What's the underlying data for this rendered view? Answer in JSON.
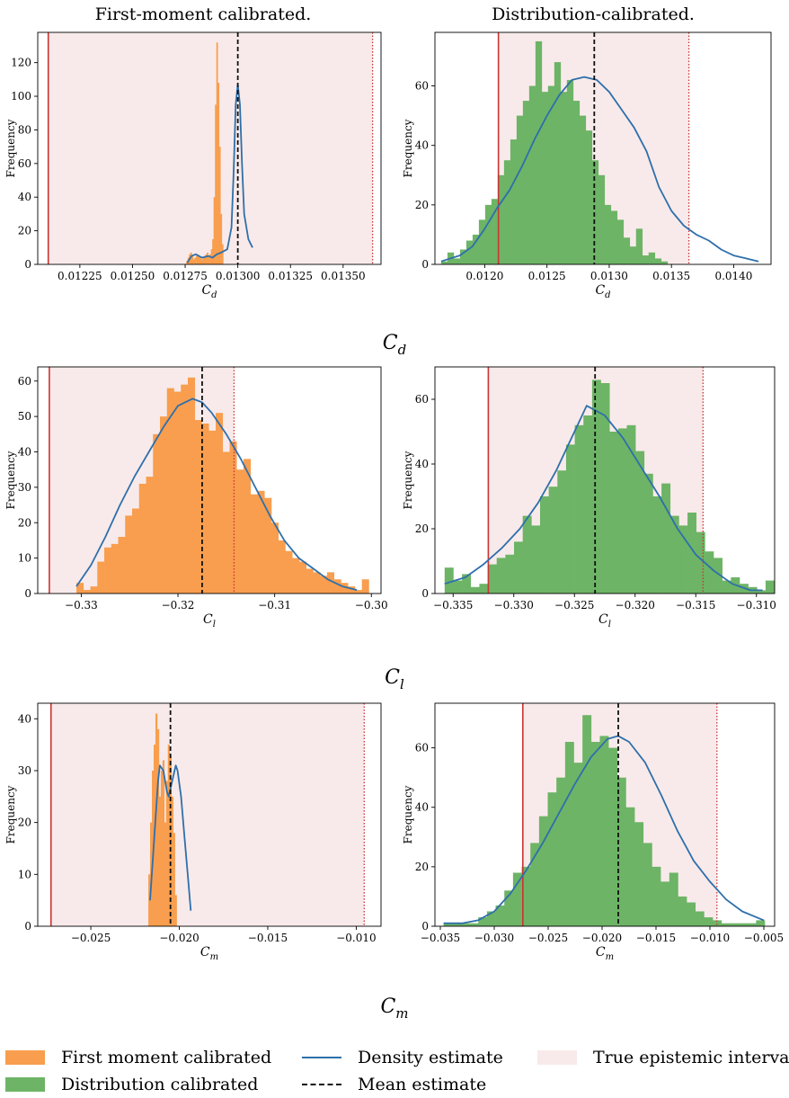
{
  "columns": {
    "left_title": "First-moment calibrated.",
    "right_title": "Distribution-calibrated."
  },
  "colors": {
    "first": "#f89e4e",
    "dist": "#6db466",
    "kde": "#2e6fab",
    "mean": "#111111",
    "interval_fill": "#f8eaea",
    "true_line": "#cc3333",
    "true_dotted": "#cc3333"
  },
  "row_labels": [
    {
      "label": "C",
      "sub": "d"
    },
    {
      "label": "C",
      "sub": "l"
    },
    {
      "label": "C",
      "sub": "m"
    }
  ],
  "legend": {
    "first_label": "First moment calibrated",
    "dist_label": "Distribution calibrated",
    "kde_label": "Density estimate",
    "mean_label": "Mean estimate",
    "interval_label": "True epistemic interval"
  },
  "chart_data": [
    {
      "type": "bar",
      "panel": "Cd-first",
      "series": "first",
      "xlabel": "C_d",
      "ylabel": "Frequency",
      "xlim": [
        0.01205,
        0.01368
      ],
      "ylim": [
        0,
        138
      ],
      "xticks": [
        0.01225,
        0.0125,
        0.01275,
        0.013,
        0.01325,
        0.0135
      ],
      "xticklabels": [
        "0.01225",
        "0.01250",
        "0.01275",
        "0.01300",
        "0.01325",
        "0.01350"
      ],
      "yticks": [
        0,
        20,
        40,
        60,
        80,
        100,
        120
      ],
      "interval": [
        0.0121,
        0.01364
      ],
      "mean": 0.013,
      "hist": {
        "start": 0.012755,
        "width": 6.5e-06,
        "values": [
          2,
          4,
          6,
          7,
          5,
          3,
          4,
          5,
          6,
          5,
          4,
          3,
          4,
          5,
          6,
          7,
          5,
          6,
          9,
          15,
          40,
          95,
          132,
          108,
          70,
          30,
          12
        ]
      },
      "kde": {
        "x": [
          0.01276,
          0.01278,
          0.0128,
          0.01283,
          0.01286,
          0.01288,
          0.0129,
          0.01292,
          0.01295,
          0.01297,
          0.01298,
          0.01299,
          0.013,
          0.01301,
          0.01302,
          0.01303,
          0.01305,
          0.01307
        ],
        "y": [
          1,
          5,
          6,
          4,
          5,
          4,
          6,
          7,
          9,
          22,
          55,
          95,
          107,
          95,
          60,
          30,
          15,
          10
        ]
      }
    },
    {
      "type": "bar",
      "panel": "Cd-dist",
      "series": "dist",
      "xlabel": "C_d",
      "ylabel": "Frequency",
      "xlim": [
        0.0116,
        0.0143
      ],
      "ylim": [
        0,
        78
      ],
      "xticks": [
        0.012,
        0.0125,
        0.013,
        0.0135,
        0.014
      ],
      "xticklabels": [
        "0.0120",
        "0.0125",
        "0.0130",
        "0.0135",
        "0.0140"
      ],
      "yticks": [
        0,
        20,
        40,
        60
      ],
      "interval": [
        0.01211,
        0.01364
      ],
      "mean": 0.01288,
      "hist": {
        "start": 0.01165,
        "width": 5.05e-05,
        "values": [
          1,
          4,
          2,
          5,
          8,
          10,
          15,
          20,
          22,
          30,
          35,
          42,
          50,
          55,
          60,
          75,
          58,
          60,
          68,
          58,
          62,
          55,
          50,
          45,
          35,
          30,
          20,
          18,
          15,
          9,
          6,
          12,
          3,
          4,
          2,
          1
        ]
      },
      "kde": {
        "x": [
          0.01165,
          0.0118,
          0.0119,
          0.012,
          0.0121,
          0.0122,
          0.0123,
          0.0124,
          0.0125,
          0.0126,
          0.0127,
          0.0128,
          0.0129,
          0.013,
          0.0131,
          0.0132,
          0.0133,
          0.0134,
          0.0135,
          0.0136,
          0.0137,
          0.0138,
          0.0139,
          0.014,
          0.0141,
          0.0142
        ],
        "y": [
          1,
          3,
          6,
          12,
          19,
          25,
          33,
          42,
          50,
          57,
          62,
          63,
          62,
          58,
          52,
          46,
          38,
          26,
          18,
          13,
          10,
          8,
          5,
          3,
          2,
          1
        ]
      }
    },
    {
      "type": "bar",
      "panel": "Cl-first",
      "series": "first",
      "xlabel": "C_l",
      "ylabel": "Frequency",
      "xlim": [
        -0.3345,
        -0.299
      ],
      "ylim": [
        0,
        64
      ],
      "xticks": [
        -0.33,
        -0.32,
        -0.31,
        -0.3
      ],
      "xticklabels": [
        "−0.33",
        "−0.32",
        "−0.31",
        "−0.30"
      ],
      "yticks": [
        0,
        10,
        20,
        30,
        40,
        50,
        60
      ],
      "interval": [
        -0.3333,
        -0.3142
      ],
      "mean": -0.3175,
      "hist": {
        "start": -0.3305,
        "width": 0.00072,
        "values": [
          3,
          1,
          2,
          9,
          13,
          14,
          16,
          22,
          24,
          31,
          33,
          45,
          50,
          58,
          57,
          59,
          61,
          49,
          48,
          46,
          51,
          40,
          43,
          35,
          38,
          28,
          29,
          27,
          20,
          15,
          12,
          10,
          9,
          7,
          6,
          5,
          6,
          4,
          3,
          2,
          1,
          4
        ]
      },
      "kde": {
        "x": [
          -0.3305,
          -0.329,
          -0.3275,
          -0.326,
          -0.3245,
          -0.323,
          -0.3215,
          -0.32,
          -0.3185,
          -0.3175,
          -0.3165,
          -0.315,
          -0.3135,
          -0.312,
          -0.3105,
          -0.309,
          -0.3075,
          -0.306,
          -0.3045,
          -0.303,
          -0.3015
        ],
        "y": [
          2,
          8,
          16,
          25,
          33,
          40,
          47,
          53,
          55,
          54,
          51,
          45,
          38,
          30,
          22,
          15,
          10,
          7,
          4,
          2,
          1
        ]
      }
    },
    {
      "type": "bar",
      "panel": "Cl-dist",
      "series": "dist",
      "xlabel": "C_l",
      "ylabel": "Frequency",
      "xlim": [
        -0.3365,
        -0.3085
      ],
      "ylim": [
        0,
        70
      ],
      "xticks": [
        -0.335,
        -0.33,
        -0.325,
        -0.32,
        -0.315,
        -0.31
      ],
      "xticklabels": [
        "−0.335",
        "−0.330",
        "−0.325",
        "−0.320",
        "−0.315",
        "−0.310"
      ],
      "yticks": [
        0,
        20,
        40,
        60
      ],
      "interval": [
        -0.3321,
        -0.3144
      ],
      "mean": -0.3233,
      "hist": {
        "start": -0.3357,
        "width": 0.000715,
        "values": [
          8,
          4,
          6,
          2,
          3,
          9,
          11,
          12,
          16,
          24,
          21,
          30,
          33,
          38,
          46,
          52,
          55,
          66,
          65,
          50,
          51,
          52,
          44,
          37,
          30,
          34,
          24,
          21,
          25,
          19,
          13,
          11,
          4,
          5,
          3,
          2,
          1,
          4
        ]
      },
      "kde": {
        "x": [
          -0.3357,
          -0.334,
          -0.3325,
          -0.331,
          -0.3295,
          -0.328,
          -0.3265,
          -0.325,
          -0.324,
          -0.3225,
          -0.321,
          -0.3195,
          -0.318,
          -0.3165,
          -0.315,
          -0.3135,
          -0.312,
          -0.3105,
          -0.3095
        ],
        "y": [
          3,
          5,
          9,
          14,
          20,
          28,
          38,
          50,
          58,
          55,
          48,
          39,
          30,
          20,
          12,
          7,
          3,
          1,
          1
        ]
      }
    },
    {
      "type": "bar",
      "panel": "Cm-first",
      "series": "first",
      "xlabel": "C_m",
      "ylabel": "Frequency",
      "xlim": [
        -0.028,
        -0.0086
      ],
      "ylim": [
        0,
        43
      ],
      "xticks": [
        -0.025,
        -0.02,
        -0.015,
        -0.01
      ],
      "xticklabels": [
        "−0.025",
        "−0.020",
        "−0.015",
        "−0.010"
      ],
      "yticks": [
        0,
        10,
        20,
        30,
        40
      ],
      "interval": [
        -0.02725,
        -0.00955
      ],
      "mean": -0.0205,
      "hist": {
        "start": -0.02175,
        "width": 0.0001,
        "values": [
          10,
          20,
          30,
          35,
          41,
          38,
          25,
          30,
          32,
          20,
          28,
          35,
          33,
          25,
          18,
          6
        ]
      },
      "kde": {
        "x": [
          -0.02165,
          -0.0214,
          -0.0212,
          -0.0211,
          -0.0209,
          -0.0207,
          -0.0206,
          -0.0204,
          -0.0202,
          -0.0201,
          -0.0199,
          -0.0197,
          -0.0195,
          -0.01935
        ],
        "y": [
          5,
          18,
          28,
          31,
          30,
          26,
          25,
          28,
          31,
          30,
          25,
          17,
          9,
          3
        ]
      }
    },
    {
      "type": "bar",
      "panel": "Cm-dist",
      "series": "dist",
      "xlabel": "C_m",
      "ylabel": "Frequency",
      "xlim": [
        -0.0355,
        -0.004
      ],
      "ylim": [
        0,
        75
      ],
      "xticks": [
        -0.035,
        -0.03,
        -0.025,
        -0.02,
        -0.015,
        -0.01,
        -0.005
      ],
      "xticklabels": [
        "−0.035",
        "−0.030",
        "−0.025",
        "−0.020",
        "−0.015",
        "−0.010",
        "−0.005"
      ],
      "yticks": [
        0,
        20,
        40,
        60
      ],
      "interval": [
        -0.02735,
        -0.00935
      ],
      "mean": -0.0185,
      "hist": {
        "start": -0.0347,
        "width": 0.000805,
        "values": [
          1,
          1,
          1,
          1,
          3,
          5,
          7,
          12,
          18,
          20,
          28,
          37,
          45,
          50,
          62,
          55,
          71,
          62,
          64,
          60,
          50,
          40,
          35,
          28,
          20,
          15,
          18,
          10,
          8,
          5,
          3,
          2,
          1,
          1,
          1,
          1,
          2
        ]
      },
      "kde": {
        "x": [
          -0.0347,
          -0.033,
          -0.0315,
          -0.03,
          -0.0285,
          -0.027,
          -0.0255,
          -0.024,
          -0.0225,
          -0.021,
          -0.0195,
          -0.0185,
          -0.0175,
          -0.016,
          -0.0145,
          -0.013,
          -0.0115,
          -0.01,
          -0.0085,
          -0.007,
          -0.005
        ],
        "y": [
          1,
          1,
          2,
          5,
          11,
          19,
          28,
          38,
          48,
          57,
          63,
          64,
          62,
          55,
          44,
          32,
          22,
          15,
          9,
          5,
          2
        ]
      }
    }
  ]
}
